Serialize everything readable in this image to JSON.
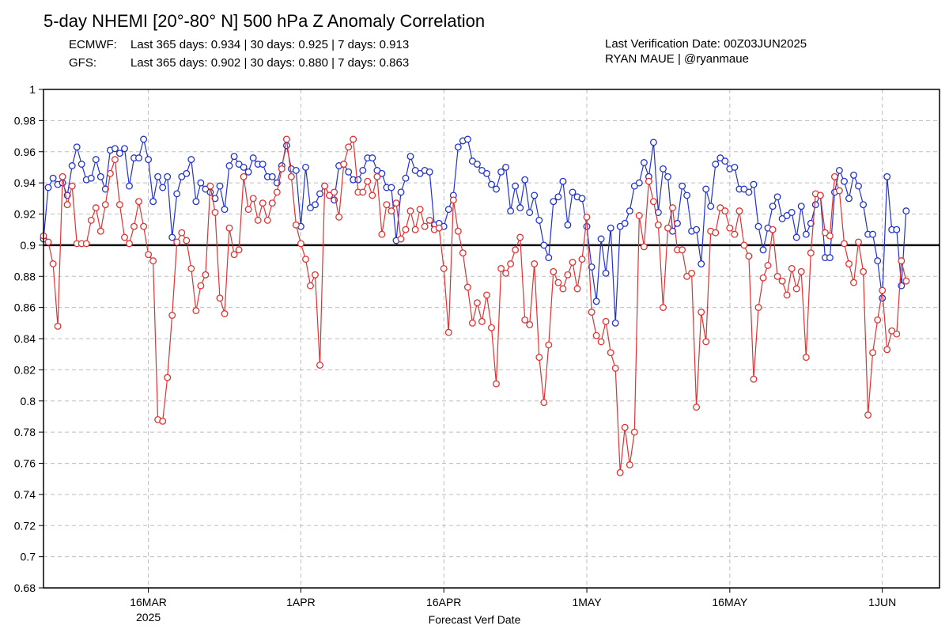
{
  "header": {
    "title": "5-day NHEMI [20°-80° N] 500 hPa Z Anomaly Correlation",
    "ecmwf_label": "ECMWF:",
    "ecmwf_stats": "Last 365 days: 0.934 | 30 days: 0.925 | 7 days: 0.913",
    "gfs_label": "GFS:",
    "gfs_stats": "Last 365 days: 0.902 | 30 days: 0.880 | 7 days: 0.863",
    "verification": "Last Verification Date: 00Z03JUN2025",
    "credit": "RYAN MAUE | @ryanmaue"
  },
  "chart_data": {
    "type": "line",
    "xlabel": "Forecast Verf Date",
    "ylabel": "",
    "ylim": [
      0.68,
      1.0
    ],
    "yticks": [
      0.68,
      0.7,
      0.72,
      0.74,
      0.76,
      0.78,
      0.8,
      0.82,
      0.84,
      0.86,
      0.88,
      0.9,
      0.92,
      0.94,
      0.96,
      0.98,
      1
    ],
    "x_start": "2025-03-05",
    "x_end": "2025-06-07",
    "xticks": [
      {
        "date": "2025-03-16",
        "label": "16MAR",
        "sublabel": "2025"
      },
      {
        "date": "2025-04-01",
        "label": "1APR",
        "sublabel": ""
      },
      {
        "date": "2025-04-16",
        "label": "16APR",
        "sublabel": ""
      },
      {
        "date": "2025-05-01",
        "label": "1MAY",
        "sublabel": ""
      },
      {
        "date": "2025-05-16",
        "label": "16MAY",
        "sublabel": ""
      },
      {
        "date": "2025-06-01",
        "label": "1JUN",
        "sublabel": ""
      }
    ],
    "reference_line": 0.9,
    "grid": true,
    "x_start_time": "2025-03-05T00:00",
    "x_step_hours": 12,
    "series": [
      {
        "color": "#2233cc",
        "values": [
          0.904,
          0.937,
          0.943,
          0.939,
          0.94,
          0.932,
          0.951,
          0.963,
          0.952,
          0.942,
          0.943,
          0.955,
          0.944,
          0.936,
          0.961,
          0.962,
          0.959,
          0.962,
          0.938,
          0.956,
          0.956,
          0.968,
          0.955,
          0.928,
          0.944,
          0.937,
          0.944,
          0.905,
          0.933,
          0.944,
          0.946,
          0.955,
          0.928,
          0.94,
          0.936,
          0.934,
          0.93,
          0.938,
          0.923,
          0.951,
          0.957,
          0.952,
          0.95,
          0.947,
          0.956,
          0.952,
          0.952,
          0.944,
          0.944,
          0.94,
          0.951,
          0.964,
          0.949,
          0.948,
          0.912,
          0.95,
          0.924,
          0.926,
          0.933,
          0.938,
          0.932,
          0.929,
          0.951,
          0.952,
          0.947,
          0.942,
          0.942,
          0.948,
          0.956,
          0.956,
          0.948,
          0.946,
          0.937,
          0.937,
          0.903,
          0.934,
          0.943,
          0.957,
          0.948,
          0.946,
          0.948,
          0.947,
          0.913,
          0.914,
          0.912,
          0.923,
          0.932,
          0.963,
          0.967,
          0.968,
          0.954,
          0.952,
          0.948,
          0.946,
          0.939,
          0.936,
          0.947,
          0.95,
          0.922,
          0.938,
          0.924,
          0.942,
          0.921,
          0.932,
          0.916,
          0.9,
          0.892,
          0.928,
          0.931,
          0.941,
          0.913,
          0.934,
          0.931,
          0.93,
          0.912,
          0.886,
          0.864,
          0.904,
          0.882,
          0.911,
          0.85,
          0.912,
          0.914,
          0.922,
          0.938,
          0.94,
          0.953,
          0.944,
          0.966,
          0.921,
          0.949,
          0.944,
          0.909,
          0.914,
          0.938,
          0.932,
          0.909,
          0.91,
          0.888,
          0.936,
          0.925,
          0.952,
          0.956,
          0.954,
          0.949,
          0.95,
          0.936,
          0.936,
          0.934,
          0.939,
          0.912,
          0.897,
          0.911,
          0.925,
          0.931,
          0.917,
          0.919,
          0.921,
          0.905,
          0.925,
          0.907,
          0.914,
          0.926,
          0.932,
          0.892,
          0.892,
          0.934,
          0.948,
          0.941,
          0.93,
          0.945,
          0.938,
          0.926,
          0.907,
          0.907,
          0.89,
          0.866,
          0.944,
          0.91,
          0.91,
          0.874,
          0.922
        ]
      },
      {
        "color": "#dd3333",
        "values": [
          0.906,
          0.902,
          0.888,
          0.848,
          0.944,
          0.926,
          0.938,
          0.901,
          0.901,
          0.901,
          0.916,
          0.924,
          0.909,
          0.926,
          0.946,
          0.955,
          0.926,
          0.905,
          0.901,
          0.912,
          0.928,
          0.912,
          0.894,
          0.89,
          0.788,
          0.787,
          0.815,
          0.855,
          0.902,
          0.908,
          0.903,
          0.885,
          0.858,
          0.874,
          0.881,
          0.938,
          0.921,
          0.866,
          0.856,
          0.911,
          0.894,
          0.897,
          0.944,
          0.923,
          0.93,
          0.916,
          0.927,
          0.916,
          0.927,
          0.934,
          0.949,
          0.968,
          0.944,
          0.913,
          0.901,
          0.891,
          0.874,
          0.881,
          0.823,
          0.938,
          0.932,
          0.934,
          0.918,
          0.952,
          0.963,
          0.968,
          0.934,
          0.934,
          0.941,
          0.932,
          0.944,
          0.907,
          0.926,
          0.922,
          0.927,
          0.904,
          0.91,
          0.922,
          0.91,
          0.923,
          0.912,
          0.916,
          0.91,
          0.911,
          0.885,
          0.844,
          0.929,
          0.909,
          0.895,
          0.873,
          0.85,
          0.863,
          0.851,
          0.868,
          0.847,
          0.811,
          0.885,
          0.882,
          0.888,
          0.897,
          0.905,
          0.852,
          0.849,
          0.888,
          0.828,
          0.799,
          0.836,
          0.883,
          0.876,
          0.872,
          0.881,
          0.889,
          0.872,
          0.891,
          0.918,
          0.857,
          0.842,
          0.838,
          0.851,
          0.831,
          0.821,
          0.754,
          0.783,
          0.759,
          0.78,
          0.919,
          0.899,
          0.941,
          0.928,
          0.913,
          0.86,
          0.911,
          0.924,
          0.897,
          0.897,
          0.88,
          0.882,
          0.796,
          0.857,
          0.838,
          0.909,
          0.908,
          0.924,
          0.922,
          0.911,
          0.907,
          0.922,
          0.9,
          0.893,
          0.814,
          0.86,
          0.879,
          0.887,
          0.91,
          0.88,
          0.877,
          0.868,
          0.885,
          0.872,
          0.883,
          0.828,
          0.895,
          0.933,
          0.932,
          0.908,
          0.906,
          0.944,
          0.935,
          0.901,
          0.888,
          0.876,
          0.902,
          0.883,
          0.791,
          0.831,
          0.852,
          0.871,
          0.833,
          0.845,
          0.843,
          0.89,
          0.877
        ]
      }
    ]
  }
}
